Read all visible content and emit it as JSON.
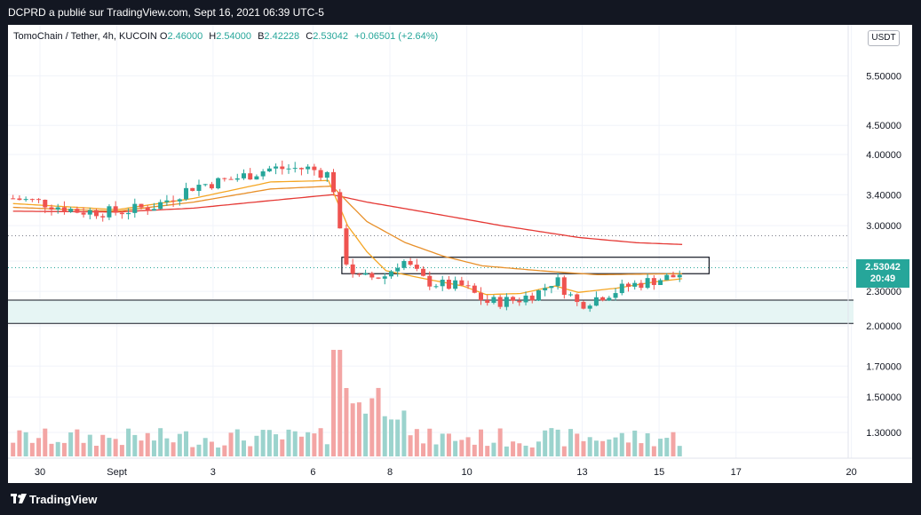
{
  "header": {
    "publish_line": "DCPRD a  publié sur TradingView.com, Sept 16, 2021 06:39 UTC-5"
  },
  "legend": {
    "symbol": "TomoChain / Tether, 4h, KUCOIN",
    "open_label": "O",
    "open": "2.46000",
    "high_label": "H",
    "high": "2.54000",
    "low_label": "B",
    "low": "2.42228",
    "close_label": "C",
    "close": "2.53042",
    "change": "+0.06501 (+2.64%)"
  },
  "currency_button": "USDT",
  "price_tag": {
    "price": "2.53042",
    "countdown": "20:49"
  },
  "footer": {
    "brand": "TradingView"
  },
  "colors": {
    "up": "#26a69a",
    "down": "#ef5350",
    "ema_fast": "#f5a623",
    "ema_mid": "#e8902a",
    "ema_slow": "#e53935",
    "frame": "#131722"
  },
  "chart_data": {
    "type": "candlestick",
    "pair": "TomoChain / Tether",
    "interval": "4h",
    "exchange": "KUCOIN",
    "y_axis": {
      "scale": "log",
      "ticks": [
        1.3,
        1.5,
        1.7,
        2.0,
        2.3,
        2.6,
        3.0,
        3.4,
        4.0,
        4.5,
        5.5
      ],
      "tick_labels": [
        "1.30000",
        "1.50000",
        "1.70000",
        "2.00000",
        "2.30000",
        "",
        "3.00000",
        "3.40000",
        "4.00000",
        "4.50000",
        "5.50000"
      ]
    },
    "x_axis": {
      "tick_labels": [
        "30",
        "Sept",
        "3",
        "6",
        "8",
        "10",
        "13",
        "15",
        "17",
        "20"
      ],
      "tick_days": [
        30,
        32,
        34.5,
        37.1,
        39.1,
        41.1,
        44.1,
        46.1,
        48.1,
        51.1
      ]
    },
    "levels": {
      "resistance_box": [
        2.47,
        2.64
      ],
      "support_zone": [
        2.02,
        2.22
      ],
      "dotted_line": 2.88,
      "last_price_line": 2.53042
    },
    "candles_anchor": [
      [
        29.3,
        3.35
      ],
      [
        30.0,
        3.3
      ],
      [
        31.0,
        3.18
      ],
      [
        32.0,
        3.17
      ],
      [
        33.0,
        3.25
      ],
      [
        34.0,
        3.52
      ],
      [
        35.0,
        3.62
      ],
      [
        36.0,
        3.78
      ],
      [
        37.0,
        3.78
      ],
      [
        37.55,
        3.68
      ],
      [
        37.65,
        3.45
      ],
      [
        37.8,
        2.9
      ],
      [
        38.0,
        2.55
      ],
      [
        38.3,
        2.42
      ],
      [
        39.0,
        2.45
      ],
      [
        39.4,
        2.62
      ],
      [
        40.0,
        2.4
      ],
      [
        40.6,
        2.35
      ],
      [
        41.0,
        2.35
      ],
      [
        41.6,
        2.2
      ],
      [
        42.4,
        2.22
      ],
      [
        43.0,
        2.3
      ],
      [
        43.4,
        2.42
      ],
      [
        44.0,
        2.18
      ],
      [
        44.6,
        2.26
      ],
      [
        45.4,
        2.36
      ],
      [
        46.0,
        2.41
      ],
      [
        46.6,
        2.45
      ],
      [
        46.75,
        2.53
      ]
    ],
    "ema_fast_anchor": [
      [
        29.3,
        3.28
      ],
      [
        32.0,
        3.2
      ],
      [
        34.0,
        3.35
      ],
      [
        36.0,
        3.58
      ],
      [
        37.5,
        3.6
      ],
      [
        38.0,
        3.0
      ],
      [
        38.5,
        2.7
      ],
      [
        39.0,
        2.5
      ],
      [
        40.0,
        2.42
      ],
      [
        41.0,
        2.35
      ],
      [
        41.6,
        2.27
      ],
      [
        42.5,
        2.28
      ],
      [
        43.4,
        2.35
      ],
      [
        44.0,
        2.29
      ],
      [
        45.0,
        2.33
      ],
      [
        46.0,
        2.39
      ],
      [
        46.7,
        2.42
      ]
    ],
    "ema_mid_anchor": [
      [
        29.3,
        3.23
      ],
      [
        32.0,
        3.18
      ],
      [
        34.0,
        3.3
      ],
      [
        36.0,
        3.48
      ],
      [
        37.6,
        3.52
      ],
      [
        38.0,
        3.3
      ],
      [
        38.5,
        3.05
      ],
      [
        39.5,
        2.8
      ],
      [
        40.5,
        2.65
      ],
      [
        41.5,
        2.55
      ],
      [
        43.0,
        2.5
      ],
      [
        44.5,
        2.46
      ],
      [
        46.7,
        2.47
      ]
    ],
    "ema_slow_anchor": [
      [
        29.3,
        3.18
      ],
      [
        32.0,
        3.17
      ],
      [
        34.0,
        3.22
      ],
      [
        36.0,
        3.32
      ],
      [
        37.6,
        3.4
      ],
      [
        38.5,
        3.3
      ],
      [
        40.0,
        3.17
      ],
      [
        42.0,
        3.0
      ],
      [
        44.0,
        2.86
      ],
      [
        45.5,
        2.8
      ],
      [
        46.7,
        2.78
      ]
    ]
  }
}
